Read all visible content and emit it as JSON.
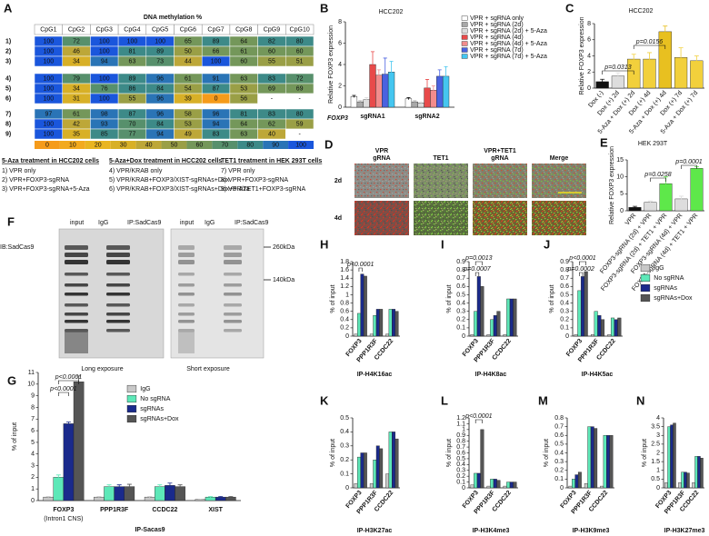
{
  "figure_table": {
    "label": "A",
    "title": "DNA methylation %",
    "columns": [
      "CpG1",
      "CpG2",
      "CpG3",
      "CpG4",
      "CpG5",
      "CpG6",
      "CpG7",
      "CpG8",
      "CpG9",
      "CpG10"
    ],
    "rows": [
      {
        "label": "1)",
        "cells": [
          100,
          72,
          100,
          100,
          100,
          65,
          89,
          64,
          82,
          80
        ]
      },
      {
        "label": "2)",
        "cells": [
          100,
          46,
          100,
          81,
          89,
          50,
          66,
          61,
          60,
          60
        ]
      },
      {
        "label": "3)",
        "cells": [
          100,
          34,
          94,
          63,
          73,
          44,
          100,
          60,
          55,
          51
        ]
      },
      {
        "label": "4)",
        "cells": [
          100,
          79,
          100,
          89,
          96,
          61,
          91,
          63,
          83,
          72
        ]
      },
      {
        "label": "5)",
        "cells": [
          100,
          34,
          76,
          86,
          84,
          54,
          87,
          53,
          69,
          69
        ]
      },
      {
        "label": "6)",
        "cells": [
          100,
          31,
          100,
          55,
          96,
          39,
          0,
          56,
          "-",
          "-"
        ]
      },
      {
        "label": "7)",
        "cells": [
          97,
          61,
          98,
          87,
          96,
          58,
          96,
          81,
          83,
          80
        ]
      },
      {
        "label": "8)",
        "cells": [
          100,
          42,
          93,
          70,
          84,
          53,
          94,
          64,
          62,
          59
        ]
      },
      {
        "label": "9)",
        "cells": [
          100,
          35,
          85,
          77,
          94,
          49,
          83,
          63,
          40,
          "-"
        ]
      }
    ],
    "scale": [
      {
        "value": 0,
        "color": "#f59b1b"
      },
      {
        "value": 10,
        "color": "#f2aa1e"
      },
      {
        "value": 20,
        "color": "#e9b520"
      },
      {
        "value": 30,
        "color": "#d8b027"
      },
      {
        "value": 40,
        "color": "#bda738"
      },
      {
        "value": 50,
        "color": "#9a9f46"
      },
      {
        "value": 60,
        "color": "#74975a"
      },
      {
        "value": 70,
        "color": "#57906c"
      },
      {
        "value": 80,
        "color": "#3d8a88"
      },
      {
        "value": 90,
        "color": "#2a74b6"
      },
      {
        "value": 100,
        "color": "#1a56dc"
      }
    ],
    "legend_groups": [
      {
        "title": "5-Aza treatment in HCC202 cells",
        "items": [
          "1) VPR only",
          "2) VPR+FOXP3-sgRNA",
          "3) VPR+FOXP3-sgRNA+5-Aza"
        ]
      },
      {
        "title": "5-Aza+Dox treatment in HCC202 cells",
        "items": [
          "4) VPR/KRAB only",
          "5) VPR/KRAB+FOXP3/XIST-sgRNAs+Dox",
          "6) VPR/KRAB+FOXP3/XIST-sgRNAs+Dox+5-Aza"
        ]
      },
      {
        "title": "TET1 treatment in HEK 293T cells",
        "items": [
          "7) VPR only",
          "8) VPR+FOXP3-sgRNA",
          "9) VPR/TET1+FOXP3-sgRNA"
        ]
      }
    ]
  },
  "panel_d": {
    "label": "D",
    "columns": [
      [
        "VPR",
        "gRNA"
      ],
      [
        "TET1"
      ],
      [
        "VPR+TET1",
        "gRNA"
      ],
      [
        "Merge"
      ]
    ],
    "rows": [
      "2d",
      "4d"
    ]
  },
  "panel_f": {
    "label": "F",
    "antibody": "IB:SadCas9",
    "markers": [
      "260kDa",
      "140kDa"
    ],
    "blots": [
      {
        "lanes": [
          "input",
          "IgG",
          "IP:SadCas9"
        ],
        "caption": "Long exposure"
      },
      {
        "lanes": [
          "input",
          "IgG",
          "IP:SadCas9"
        ],
        "caption": "Short exposure"
      }
    ]
  },
  "chart_data": [
    {
      "type": "bar",
      "label": "B",
      "title": "HCC202",
      "ylabel": "Relative FOXP3 expression",
      "group_label": "FOXP3",
      "categories": [
        "sgRNA1",
        "sgRNA2"
      ],
      "series": [
        {
          "name": "VPR + sgRNA only",
          "color": "#ffffff",
          "values": [
            1.0,
            0.8
          ],
          "errors": [
            0.1,
            0.1
          ]
        },
        {
          "name": "VPR + sgRNA (2d)",
          "color": "#a8a8a8",
          "values": [
            0.5,
            0.5
          ],
          "errors": [
            0.1,
            0.1
          ]
        },
        {
          "name": "VPR + sgRNA (2d) + 5-Aza",
          "color": "#dcdcdc",
          "values": [
            0.7,
            0.4
          ],
          "errors": [
            0.2,
            0.1
          ]
        },
        {
          "name": "VPR + sgRNA (4d)",
          "color": "#e84a4a",
          "values": [
            4.0,
            1.8
          ],
          "errors": [
            1.2,
            0.8
          ]
        },
        {
          "name": "VPR + sgRNA (4d) + 5-Aza",
          "color": "#f28c8c",
          "values": [
            3.0,
            1.6
          ],
          "errors": [
            0.5,
            0.4
          ]
        },
        {
          "name": "VPR + sgRNA (7d)",
          "color": "#4a62e0",
          "values": [
            3.1,
            2.9
          ],
          "errors": [
            1.5,
            0.6
          ]
        },
        {
          "name": "VPR + sgRNA (7d) + 5-Aza",
          "color": "#45c6f0",
          "values": [
            3.3,
            2.9
          ],
          "errors": [
            1.0,
            0.9
          ]
        }
      ],
      "ylim": [
        0,
        8
      ],
      "yticks": [
        0,
        2,
        4,
        6,
        8
      ]
    },
    {
      "type": "bar",
      "label": "C",
      "title": "HCC202",
      "ylabel": "Relative FOXP3 expression",
      "categories": [
        "Dox (-)",
        "Dox (+) 2d",
        "5-Aza + Dox (+) 2d",
        "Dox (+) 4d",
        "5-Aza + Dox (+) 4d",
        "Dox (+) 7d",
        "5-Aza + Dox (+) 7d"
      ],
      "values": [
        0.8,
        1.5,
        3.6,
        3.6,
        7.0,
        3.8,
        3.4
      ],
      "errors": [
        0.3,
        0.4,
        0.6,
        0.8,
        0.7,
        1.2,
        0.6
      ],
      "colors": [
        "#111111",
        "#dddddd",
        "#f2d03c",
        "#f2d03c",
        "#e8c020",
        "#f2d03c",
        "#f2d03c"
      ],
      "annotations": [
        "p=0.0313",
        "p=0.0156"
      ],
      "ylim": [
        0,
        8
      ],
      "yticks": [
        0,
        2,
        4,
        6,
        8
      ]
    },
    {
      "type": "bar",
      "label": "E",
      "title": "HEK 293T",
      "ylabel": "Relative FOXP3 expression",
      "categories": [
        "VPR",
        "FOXP3-sgRNA (2d) + VPR",
        "FOXP3-sgRNA (2d) + TET1 + VPR",
        "FOXP3-sgRNA (4d) + VPR",
        "FOXP3-sgRNA (4d) + TET1 + VPR"
      ],
      "values": [
        1.0,
        2.5,
        8.0,
        3.5,
        12.5
      ],
      "errors": [
        0.3,
        0.4,
        2.0,
        0.8,
        0.5
      ],
      "colors": [
        "#111111",
        "#dddddd",
        "#5ee84a",
        "#dddddd",
        "#5ee84a"
      ],
      "annotations": [
        "p=0.0258",
        "p=0.0001"
      ],
      "ylim": [
        0,
        15
      ],
      "yticks": [
        0,
        5,
        10,
        15
      ]
    },
    {
      "type": "bar",
      "label": "G",
      "ylabel": "% of input",
      "xlabel": "IP-Sacas9",
      "categories": [
        "FOXP3",
        "PPP1R3F",
        "CCDC22",
        "XIST"
      ],
      "category_sublabels": [
        "(Intron1 CNS)",
        null,
        null,
        null
      ],
      "series": [
        {
          "name": "IgG",
          "color": "#c8c8c8",
          "values": [
            0.3,
            0.3,
            0.3,
            0.1
          ],
          "errors": [
            0.05,
            0.05,
            0.05,
            0.02
          ]
        },
        {
          "name": "No sgRNA",
          "color": "#5de8b8",
          "values": [
            2.0,
            1.2,
            1.2,
            0.3
          ],
          "errors": [
            0.2,
            0.15,
            0.15,
            0.05
          ]
        },
        {
          "name": "sgRNAs",
          "color": "#1a2a8c",
          "values": [
            6.6,
            1.2,
            1.3,
            0.3
          ],
          "errors": [
            0.15,
            0.15,
            0.2,
            0.05
          ]
        },
        {
          "name": "sgRNAs+Dox",
          "color": "#555555",
          "values": [
            10.2,
            1.2,
            1.2,
            0.3
          ],
          "errors": [
            0.5,
            0.2,
            0.15,
            0.05
          ]
        }
      ],
      "annotations": [
        "p<0.0001",
        "p<0.0001"
      ],
      "ylim": [
        0,
        11
      ],
      "yticks": [
        0,
        1,
        2,
        3,
        4,
        5,
        6,
        7,
        8,
        9,
        10,
        11
      ]
    },
    {
      "type": "bar",
      "label": "H",
      "ylabel": "% of input",
      "xlabel": "IP-H4K16ac",
      "categories": [
        "FOXP3",
        "PPP1R3F",
        "CCDC22"
      ],
      "series": [
        {
          "color": "#c8c8c8",
          "values": [
            0.05,
            0.05,
            0.05
          ]
        },
        {
          "color": "#5de8b8",
          "values": [
            0.55,
            0.5,
            0.65
          ]
        },
        {
          "color": "#1a2a8c",
          "values": [
            1.5,
            0.65,
            0.65
          ]
        },
        {
          "color": "#555555",
          "values": [
            1.45,
            0.65,
            0.6
          ]
        }
      ],
      "annotations": [
        "p<0.0001"
      ],
      "ylim": [
        0,
        1.8
      ],
      "yticks": [
        0,
        0.2,
        0.4,
        0.6,
        0.8,
        1,
        1.2,
        1.4,
        1.6,
        1.8
      ]
    },
    {
      "type": "bar",
      "label": "I",
      "ylabel": "% of input",
      "xlabel": "IP-H4K8ac",
      "categories": [
        "FOXP3",
        "PPP1R3F",
        "CCDC22"
      ],
      "series": [
        {
          "color": "#c8c8c8",
          "values": [
            0.02,
            0.02,
            0.02
          ]
        },
        {
          "color": "#5de8b8",
          "values": [
            0.3,
            0.2,
            0.45
          ]
        },
        {
          "color": "#1a2a8c",
          "values": [
            0.72,
            0.25,
            0.45
          ]
        },
        {
          "color": "#555555",
          "values": [
            0.6,
            0.3,
            0.45
          ]
        }
      ],
      "annotations": [
        "p=0.0013",
        "p=0.0007"
      ],
      "ylim": [
        0,
        0.9
      ],
      "yticks": [
        0,
        0.1,
        0.2,
        0.3,
        0.4,
        0.5,
        0.6,
        0.7,
        0.8,
        0.9
      ]
    },
    {
      "type": "bar",
      "label": "J",
      "ylabel": "% of input",
      "xlabel": "IP-H4K5ac",
      "categories": [
        "FOXP3",
        "PPP1R3F",
        "CCDC22"
      ],
      "series": [
        {
          "name": "IgG",
          "color": "#c8c8c8",
          "values": [
            0.02,
            0.02,
            0.02
          ]
        },
        {
          "name": "No sgRNA",
          "color": "#5de8b8",
          "values": [
            0.55,
            0.3,
            0.22
          ]
        },
        {
          "name": "sgRNAs",
          "color": "#1a2a8c",
          "values": [
            0.72,
            0.25,
            0.2
          ]
        },
        {
          "name": "sgRNAs+Dox",
          "color": "#555555",
          "values": [
            0.78,
            0.2,
            0.22
          ]
        }
      ],
      "annotations": [
        "p<0.0001",
        "p=0.0002"
      ],
      "ylim": [
        0,
        0.9
      ],
      "yticks": [
        0,
        0.1,
        0.2,
        0.3,
        0.4,
        0.5,
        0.6,
        0.7,
        0.8,
        0.9
      ]
    },
    {
      "type": "bar",
      "label": "K",
      "ylabel": "% of input",
      "xlabel": "IP-H3K27ac",
      "categories": [
        "FOXP3",
        "PPP1R3F",
        "CCDC22"
      ],
      "series": [
        {
          "color": "#c8c8c8",
          "values": [
            0.03,
            0.03,
            0.1
          ]
        },
        {
          "color": "#5de8b8",
          "values": [
            0.22,
            0.2,
            0.4
          ]
        },
        {
          "color": "#1a2a8c",
          "values": [
            0.25,
            0.3,
            0.4
          ]
        },
        {
          "color": "#555555",
          "values": [
            0.25,
            0.28,
            0.35
          ]
        }
      ],
      "ylim": [
        0,
        0.5
      ],
      "yticks": [
        0,
        0.1,
        0.2,
        0.3,
        0.4,
        0.5
      ]
    },
    {
      "type": "bar",
      "label": "L",
      "ylabel": "% of input",
      "xlabel": "IP-H3K4me3",
      "categories": [
        "FOXP3",
        "PPP1R3F",
        "CCDC22"
      ],
      "series": [
        {
          "color": "#c8c8c8",
          "values": [
            0.05,
            0.03,
            0.03
          ]
        },
        {
          "color": "#5de8b8",
          "values": [
            0.25,
            0.15,
            0.1
          ]
        },
        {
          "color": "#1a2a8c",
          "values": [
            0.25,
            0.15,
            0.1
          ]
        },
        {
          "color": "#555555",
          "values": [
            1.0,
            0.13,
            0.1
          ]
        }
      ],
      "annotations": [
        "p<0.0001"
      ],
      "ylim": [
        0,
        1.2
      ],
      "yticks": [
        0,
        0.1,
        0.2,
        0.3,
        0.4,
        0.5,
        0.6,
        0.7,
        0.8,
        0.9,
        1,
        1.1,
        1.2
      ]
    },
    {
      "type": "bar",
      "label": "M",
      "ylabel": "% of input",
      "xlabel": "IP-H3K9me3",
      "categories": [
        "FOXP3",
        "PPP1R3F",
        "CCDC22"
      ],
      "series": [
        {
          "color": "#c8c8c8",
          "values": [
            0.02,
            0.05,
            0.02
          ]
        },
        {
          "color": "#5de8b8",
          "values": [
            0.1,
            0.7,
            0.6
          ]
        },
        {
          "color": "#1a2a8c",
          "values": [
            0.15,
            0.7,
            0.6
          ]
        },
        {
          "color": "#555555",
          "values": [
            0.18,
            0.68,
            0.6
          ]
        }
      ],
      "ylim": [
        0,
        0.8
      ],
      "yticks": [
        0,
        0.1,
        0.2,
        0.3,
        0.4,
        0.5,
        0.6,
        0.7,
        0.8
      ]
    },
    {
      "type": "bar",
      "label": "N",
      "ylabel": "% of input",
      "xlabel": "IP-H3K27me3",
      "categories": [
        "FOXP3",
        "PPP1R3F",
        "CCDC22"
      ],
      "series": [
        {
          "color": "#c8c8c8",
          "values": [
            0.3,
            0.3,
            0.3
          ]
        },
        {
          "color": "#5de8b8",
          "values": [
            3.5,
            0.9,
            1.8
          ]
        },
        {
          "color": "#1a2a8c",
          "values": [
            3.6,
            0.9,
            1.8
          ]
        },
        {
          "color": "#555555",
          "values": [
            3.7,
            0.85,
            1.7
          ]
        }
      ],
      "ylim": [
        0,
        4
      ],
      "yticks": [
        0,
        0.5,
        1,
        1.5,
        2,
        2.5,
        3,
        3.5,
        4
      ]
    }
  ]
}
